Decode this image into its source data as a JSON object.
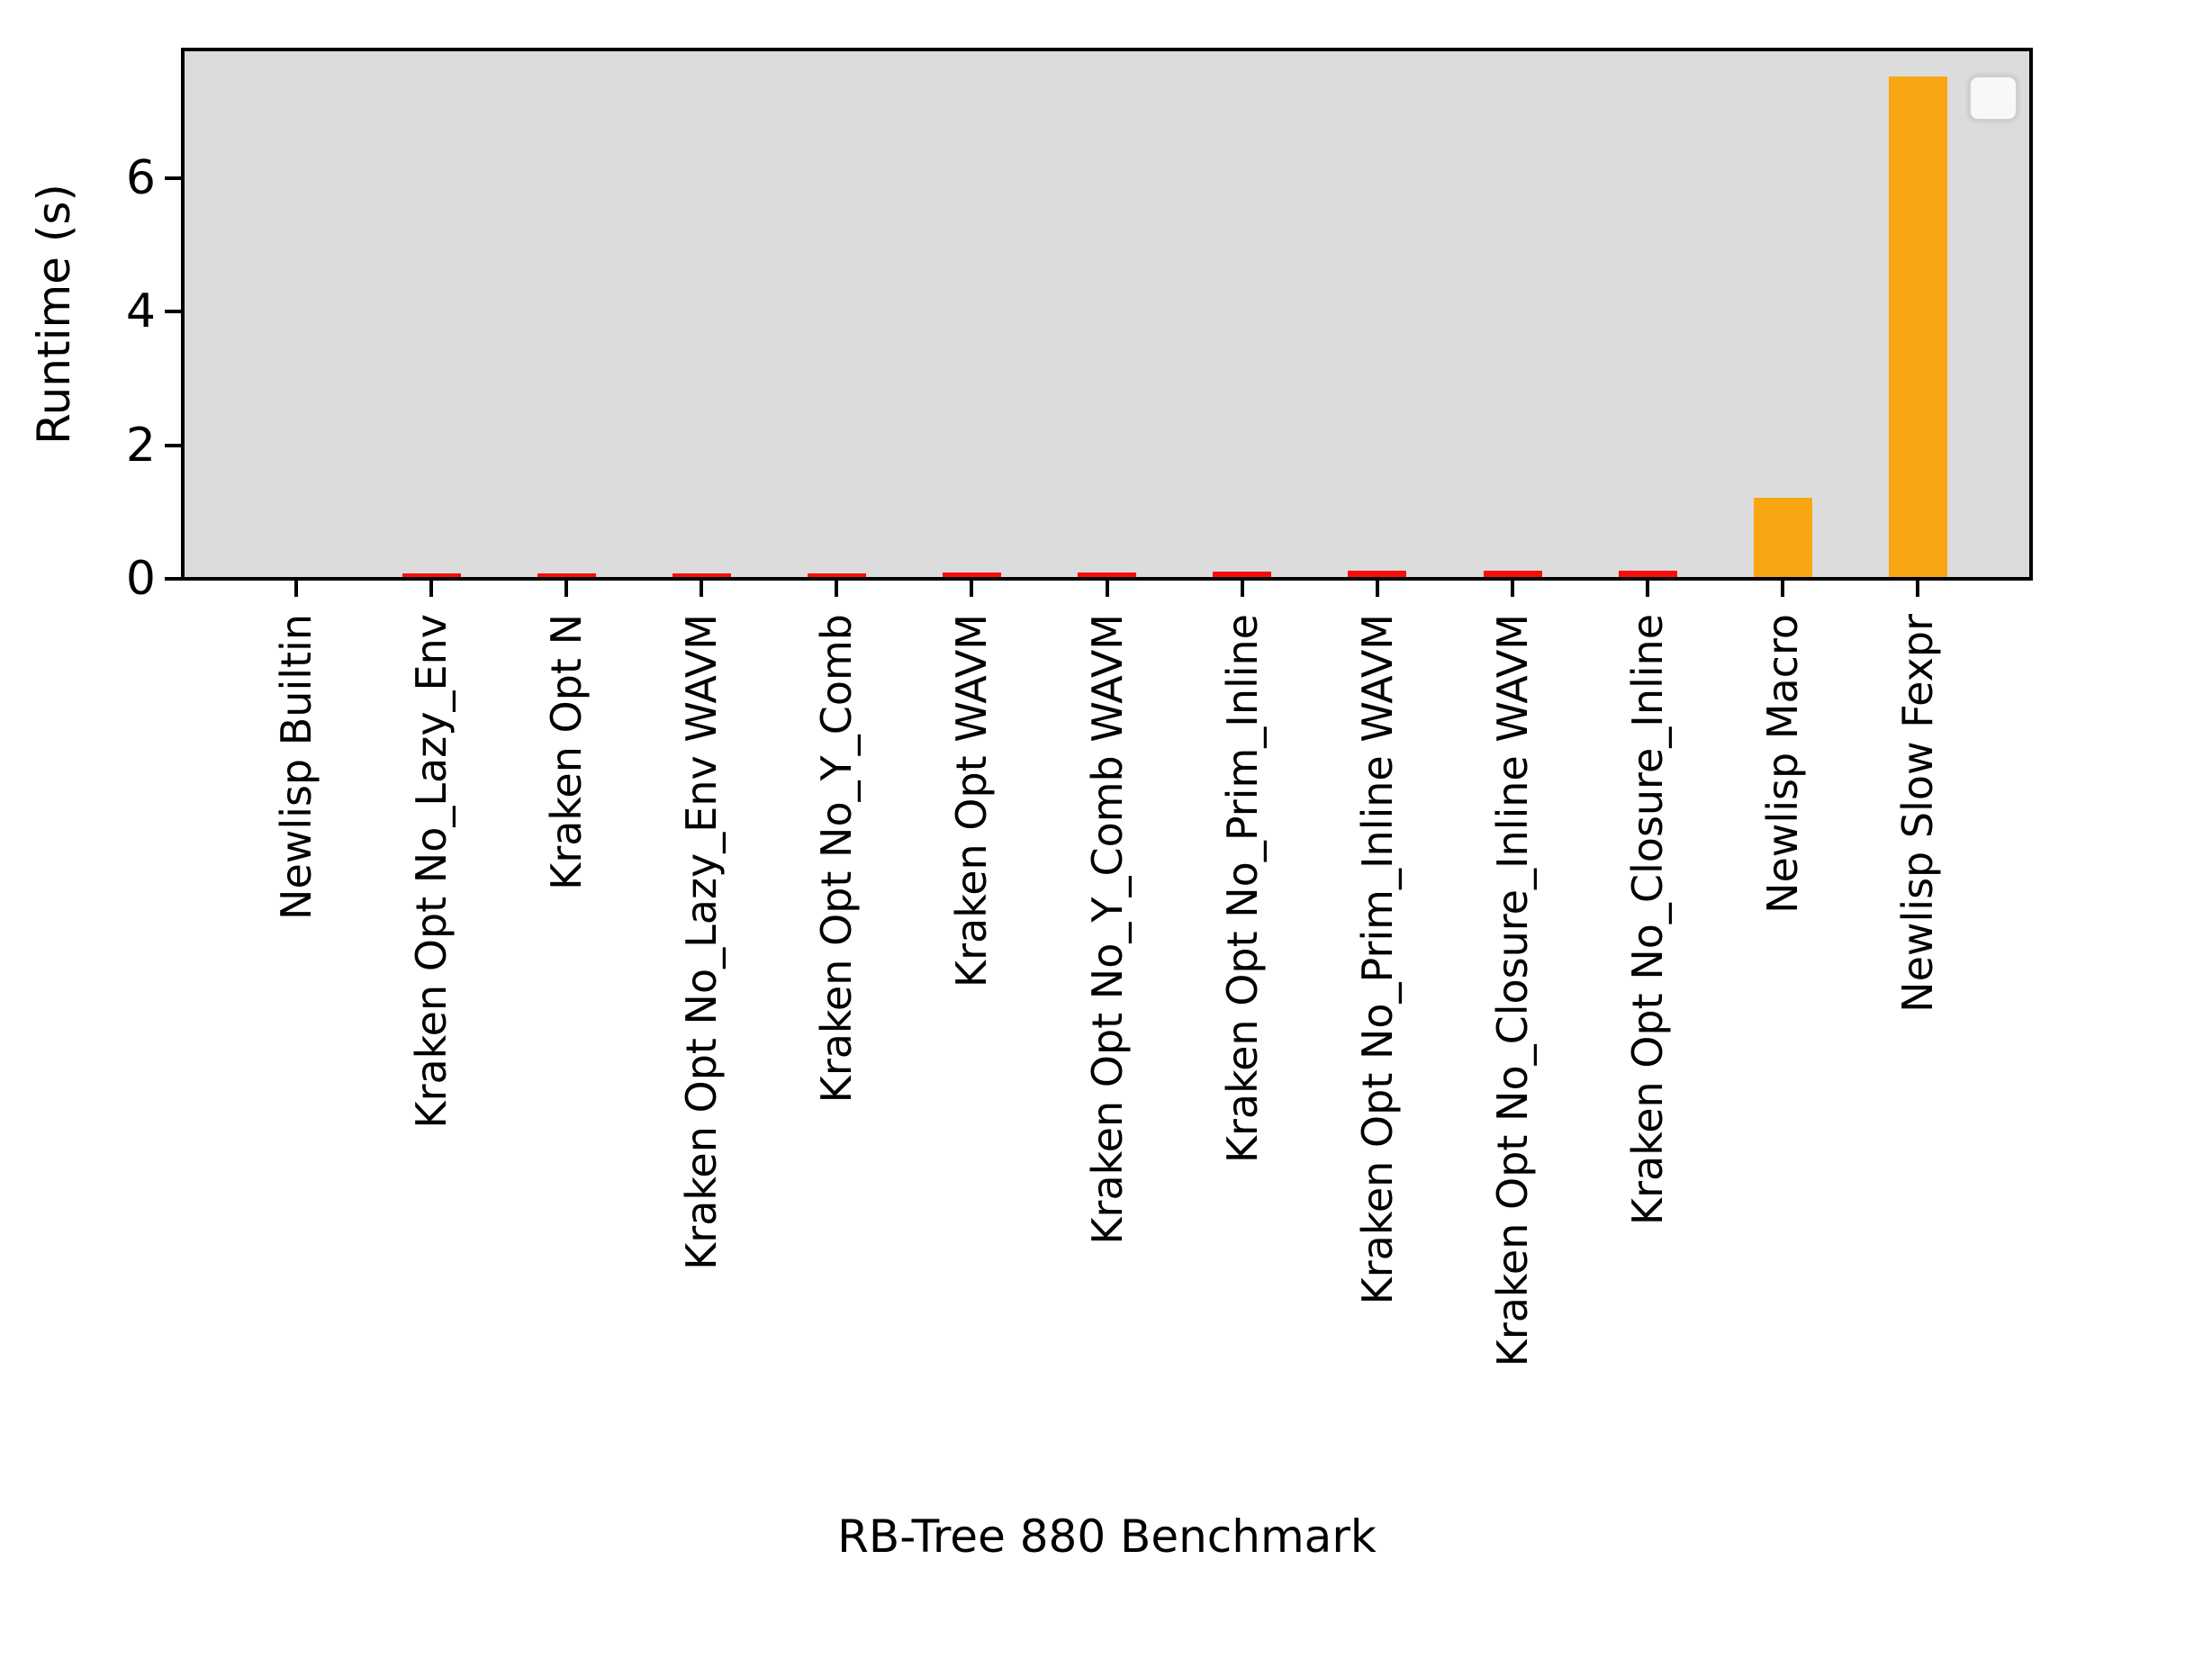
{
  "figure": {
    "background": "#ffffff",
    "plot_background": "#dcdcdc"
  },
  "chart_data": {
    "type": "bar",
    "title": "",
    "xlabel": "RB-Tree 880 Benchmark",
    "ylabel": "Runtime (s)",
    "categories": [
      "Newlisp Builtin",
      "Kraken Opt No_Lazy_Env",
      "Kraken Opt N",
      "Kraken Opt No_Lazy_Env WAVM",
      "Kraken Opt No_Y_Comb",
      "Kraken Opt WAVM",
      "Kraken Opt No_Y_Comb WAVM",
      "Kraken Opt No_Prim_Inline",
      "Kraken Opt No_Prim_Inline WAVM",
      "Kraken Opt No_Closure_Inline WAVM",
      "Kraken Opt No_Closure_Inline",
      "Newlisp Macro",
      "Newlisp Slow Fexpr"
    ],
    "values": [
      0.003,
      0.05,
      0.05,
      0.06,
      0.06,
      0.07,
      0.07,
      0.08,
      0.09,
      0.1,
      0.1,
      1.18,
      7.5
    ],
    "bar_colors": [
      "#f9a613",
      "#f90d09",
      "#f90d09",
      "#f90d09",
      "#f90d09",
      "#f90d09",
      "#f90d09",
      "#f90d09",
      "#f90d09",
      "#f90d09",
      "#f90d09",
      "#f9a613",
      "#f9a613"
    ],
    "yticks": [
      0,
      2,
      4,
      6
    ],
    "ylim": [
      0,
      7.875
    ],
    "xlim": [
      -0.825,
      12.825
    ],
    "bar_width_units": 0.43,
    "grid": false,
    "legend": {
      "present": true,
      "position": "upper right",
      "entries": []
    },
    "palette": {
      "kraken_red": "#f90d09",
      "newlisp_orange": "#f9a613"
    }
  }
}
